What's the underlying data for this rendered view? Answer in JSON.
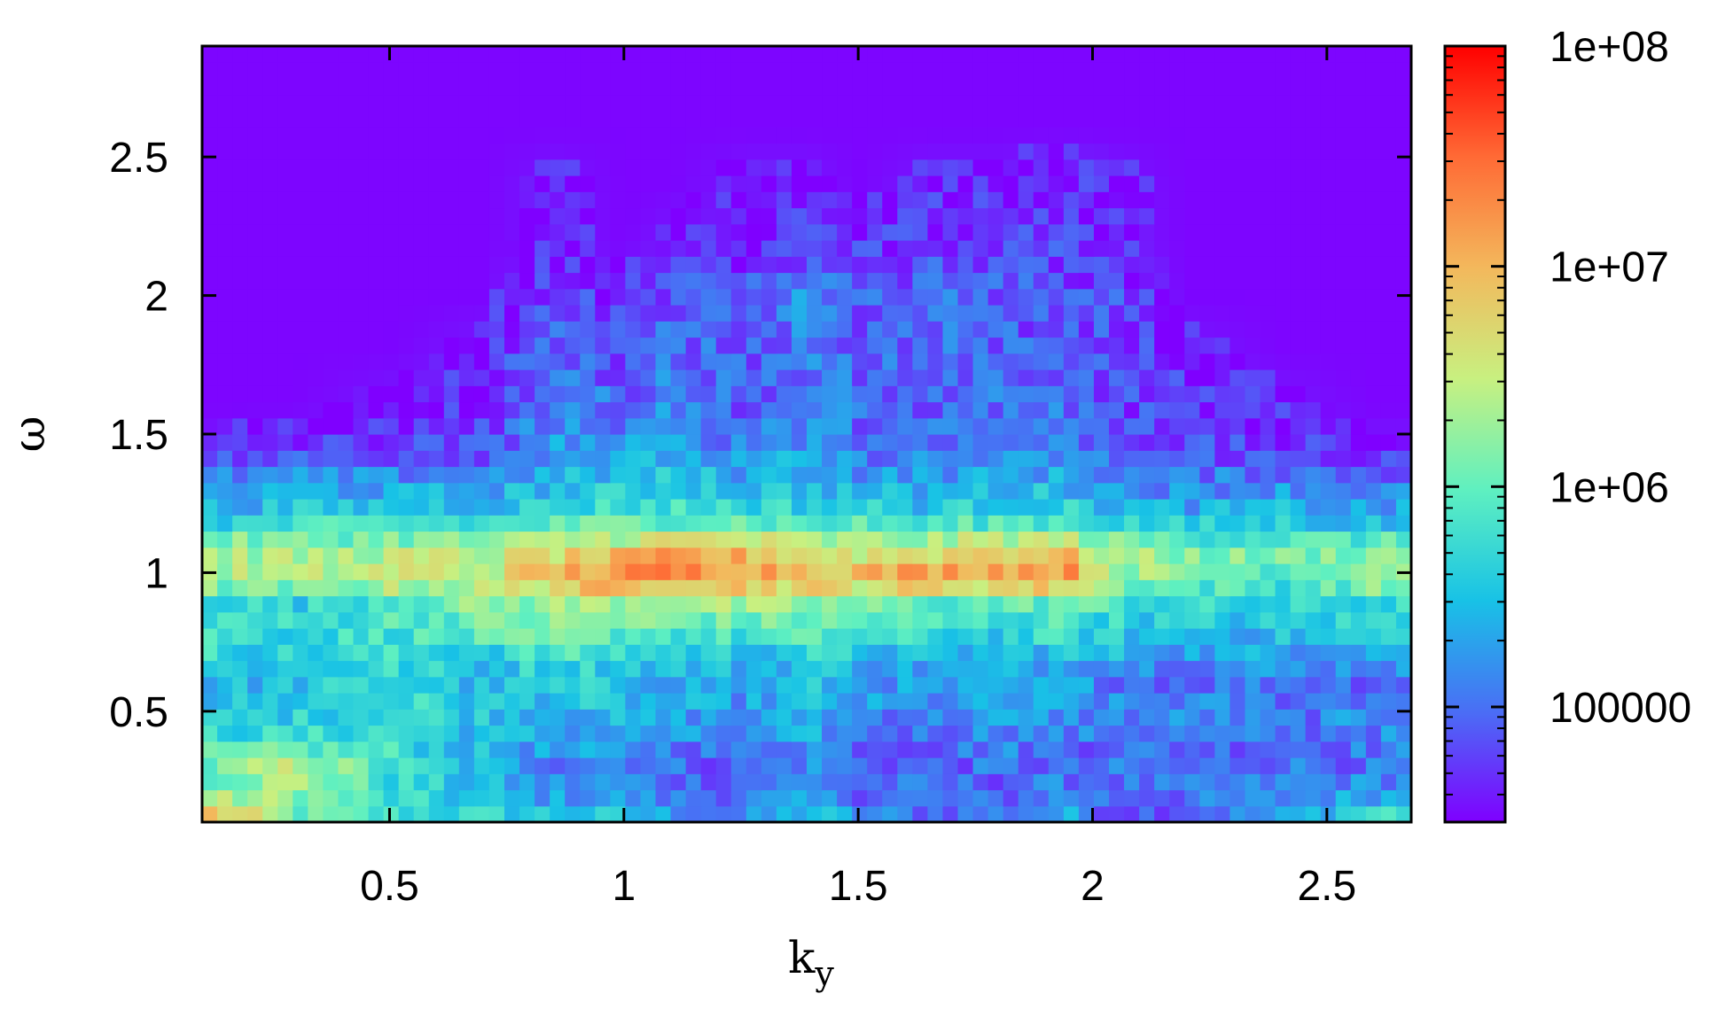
{
  "chart_data": {
    "type": "heatmap",
    "title": "",
    "xlabel": "k",
    "xlabel_subscript": "y",
    "ylabel": "ω",
    "xlim": [
      0.1,
      2.68
    ],
    "ylim": [
      0.1,
      2.9
    ],
    "x_ticks": [
      {
        "value": 0.5,
        "label": "0.5"
      },
      {
        "value": 1,
        "label": "1"
      },
      {
        "value": 1.5,
        "label": "1.5"
      },
      {
        "value": 2,
        "label": "2"
      },
      {
        "value": 2.5,
        "label": "2.5"
      }
    ],
    "y_ticks": [
      {
        "value": 0.5,
        "label": "0.5"
      },
      {
        "value": 1,
        "label": "1"
      },
      {
        "value": 1.5,
        "label": "1.5"
      },
      {
        "value": 2,
        "label": "2"
      },
      {
        "value": 2.5,
        "label": "2.5"
      }
    ],
    "colorbar": {
      "scale": "log",
      "range": [
        30000,
        100000000
      ],
      "ticks": [
        {
          "value": 100000,
          "label": "100000"
        },
        {
          "value": 1000000,
          "label": "1e+06"
        },
        {
          "value": 10000000,
          "label": "1e+07"
        },
        {
          "value": 100000000,
          "label": "1e+08"
        }
      ],
      "colors": [
        "#7f00ff",
        "#4a6ef5",
        "#18c2e6",
        "#5ff0c0",
        "#c8f080",
        "#f3b85c",
        "#ff6a35",
        "#ff0000"
      ]
    },
    "grid": false,
    "x_samples": [
      0.12,
      0.3,
      0.5,
      0.7,
      0.85,
      1.0,
      1.1,
      1.25,
      1.4,
      1.5,
      1.65,
      1.8,
      1.95,
      2.05,
      2.2,
      2.4,
      2.6
    ],
    "spectrum_bands": [
      {
        "omega": 0.12,
        "log_values": [
          7.0,
          6.0,
          5.8,
          5.7,
          5.6,
          5.5,
          5.3,
          5.0,
          5.6,
          5.2,
          5.0,
          5.1,
          5.3,
          4.9,
          5.0,
          5.2,
          5.9
        ]
      },
      {
        "omega": 0.2,
        "log_values": [
          6.2,
          6.3,
          5.7,
          5.4,
          5.2,
          5.2,
          5.0,
          5.1,
          5.1,
          5.0,
          5.0,
          4.9,
          5.2,
          5.0,
          5.0,
          5.1,
          5.3
        ]
      },
      {
        "omega": 0.3,
        "log_values": [
          6.0,
          6.5,
          5.8,
          5.4,
          5.1,
          5.2,
          5.0,
          4.9,
          5.2,
          5.0,
          4.9,
          5.0,
          4.9,
          5.0,
          4.9,
          5.1,
          5.0
        ]
      },
      {
        "omega": 0.4,
        "log_values": [
          5.8,
          5.7,
          5.8,
          5.4,
          5.3,
          5.2,
          5.2,
          5.0,
          5.3,
          5.0,
          5.0,
          5.2,
          5.0,
          5.1,
          5.0,
          5.0,
          5.1
        ]
      },
      {
        "omega": 0.5,
        "log_values": [
          5.5,
          5.6,
          5.8,
          5.6,
          5.5,
          5.4,
          5.3,
          5.2,
          5.4,
          5.2,
          5.1,
          5.3,
          5.2,
          5.1,
          5.2,
          5.0,
          5.2
        ]
      },
      {
        "omega": 0.6,
        "log_values": [
          5.4,
          5.5,
          5.7,
          5.4,
          5.6,
          5.5,
          5.4,
          5.3,
          5.5,
          5.3,
          5.2,
          5.2,
          5.3,
          5.1,
          5.0,
          5.1,
          5.0
        ]
      },
      {
        "omega": 0.7,
        "log_values": [
          5.7,
          5.6,
          5.7,
          5.6,
          5.8,
          5.7,
          5.6,
          5.5,
          5.6,
          5.5,
          5.3,
          5.4,
          5.5,
          5.4,
          5.3,
          5.3,
          5.4
        ]
      },
      {
        "omega": 0.8,
        "log_values": [
          5.9,
          5.7,
          5.9,
          6.0,
          6.1,
          6.1,
          6.0,
          5.9,
          6.0,
          5.9,
          5.8,
          5.7,
          5.8,
          5.6,
          5.5,
          5.5,
          5.7
        ]
      },
      {
        "omega": 0.9,
        "log_values": [
          5.8,
          5.6,
          6.0,
          6.2,
          6.3,
          6.4,
          6.5,
          6.3,
          6.2,
          6.1,
          6.0,
          6.0,
          6.1,
          5.9,
          5.7,
          5.6,
          5.7
        ]
      },
      {
        "omega": 0.98,
        "log_values": [
          6.4,
          6.3,
          6.6,
          6.5,
          7.1,
          7.3,
          7.4,
          7.3,
          7.1,
          7.1,
          7.3,
          7.3,
          7.3,
          6.4,
          6.1,
          6.0,
          6.4
        ]
      },
      {
        "omega": 1.08,
        "log_values": [
          6.4,
          6.3,
          6.4,
          6.4,
          6.6,
          6.8,
          7.0,
          6.9,
          6.6,
          6.5,
          6.6,
          6.8,
          6.8,
          6.3,
          6.2,
          6.1,
          6.2
        ]
      },
      {
        "omega": 1.2,
        "log_values": [
          5.5,
          5.6,
          5.7,
          5.6,
          5.8,
          5.9,
          5.9,
          5.9,
          5.7,
          5.8,
          5.6,
          5.8,
          5.7,
          5.6,
          5.4,
          5.5,
          5.3
        ]
      },
      {
        "omega": 1.32,
        "log_values": [
          5.2,
          5.3,
          5.2,
          5.3,
          5.4,
          5.5,
          5.6,
          5.4,
          5.5,
          5.3,
          5.3,
          5.4,
          5.4,
          5.2,
          5.1,
          5.2,
          5.1
        ]
      },
      {
        "omega": 1.45,
        "log_values": [
          4.6,
          4.7,
          4.8,
          4.8,
          5.3,
          5.2,
          5.3,
          5.1,
          5.3,
          5.0,
          5.1,
          5.0,
          5.1,
          4.9,
          4.8,
          4.7,
          4.6
        ]
      },
      {
        "omega": 1.6,
        "log_values": [
          4.5,
          4.5,
          4.6,
          4.7,
          5.1,
          5.0,
          5.2,
          4.9,
          5.1,
          5.0,
          4.9,
          5.0,
          5.0,
          4.8,
          4.7,
          4.6,
          4.5
        ]
      },
      {
        "omega": 1.8,
        "log_values": [
          4.5,
          4.5,
          4.5,
          4.6,
          5.0,
          4.8,
          5.0,
          4.9,
          5.1,
          4.9,
          5.0,
          4.9,
          4.9,
          4.8,
          4.6,
          4.5,
          4.5
        ]
      },
      {
        "omega": 2.0,
        "log_values": [
          4.5,
          4.5,
          4.5,
          4.5,
          4.8,
          4.6,
          4.9,
          4.8,
          5.2,
          4.9,
          5.0,
          4.9,
          4.8,
          4.8,
          4.5,
          4.5,
          4.5
        ]
      },
      {
        "omega": 2.2,
        "log_values": [
          4.5,
          4.5,
          4.5,
          4.5,
          4.6,
          4.5,
          4.6,
          4.6,
          4.7,
          4.7,
          4.7,
          4.8,
          4.7,
          4.6,
          4.5,
          4.5,
          4.5
        ]
      },
      {
        "omega": 2.4,
        "log_values": [
          4.5,
          4.5,
          4.5,
          4.5,
          4.6,
          4.5,
          4.5,
          4.6,
          4.6,
          4.5,
          4.6,
          4.6,
          4.7,
          4.6,
          4.5,
          4.5,
          4.5
        ]
      },
      {
        "omega": 2.6,
        "log_values": [
          4.5,
          4.5,
          4.5,
          4.5,
          4.5,
          4.5,
          4.5,
          4.5,
          4.5,
          4.5,
          4.5,
          4.5,
          4.5,
          4.5,
          4.5,
          4.5,
          4.5
        ]
      },
      {
        "omega": 2.9,
        "log_values": [
          4.5,
          4.5,
          4.5,
          4.5,
          4.5,
          4.5,
          4.5,
          4.5,
          4.5,
          4.5,
          4.5,
          4.5,
          4.5,
          4.5,
          4.5,
          4.5,
          4.5
        ]
      }
    ]
  }
}
